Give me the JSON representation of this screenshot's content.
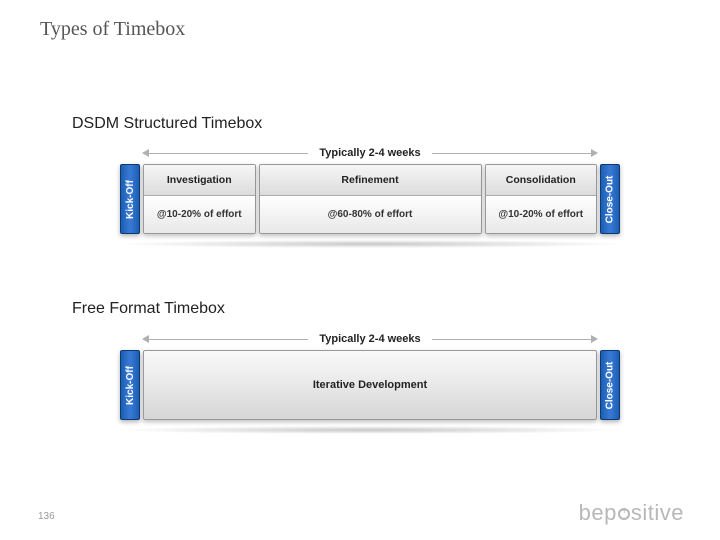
{
  "slide": {
    "title": "Types of Timebox",
    "page_number": "136",
    "brand": "bepositive",
    "background_color": "#ffffff",
    "title_color": "#555555",
    "title_font": "Georgia serif",
    "title_fontsize": 20
  },
  "sections": [
    {
      "heading": "DSDM Structured Timebox"
    },
    {
      "heading": "Free Format Timebox"
    }
  ],
  "timebox_structured": {
    "duration_label": "Typically 2-4 weeks",
    "bookend_color": "#1a5fb4",
    "bookend_text_color": "#ffffff",
    "phase_bg_top": "#dcdcdc",
    "phase_bg_bot": "#e8e8e8",
    "kickoff": "Kick-Off",
    "closeout": "Close-Out",
    "phases": [
      {
        "name": "Investigation",
        "effort": "@10-20% of effort",
        "flex": 1.1
      },
      {
        "name": "Refinement",
        "effort": "@60-80% of effort",
        "flex": 2.2
      },
      {
        "name": "Consolidation",
        "effort": "@10-20% of effort",
        "flex": 1.1
      }
    ]
  },
  "timebox_free": {
    "duration_label": "Typically 2-4 weeks",
    "bookend_color": "#1a5fb4",
    "bookend_text_color": "#ffffff",
    "kickoff": "Kick-Off",
    "closeout": "Close-Out",
    "phase_name": "Iterative Development"
  },
  "style": {
    "arrow_color": "#b0b0b0",
    "label_fontsize": 11,
    "phase_title_fontsize": 10.5,
    "effort_fontsize": 10,
    "shadow_color": "rgba(0,0,0,0.22)"
  }
}
